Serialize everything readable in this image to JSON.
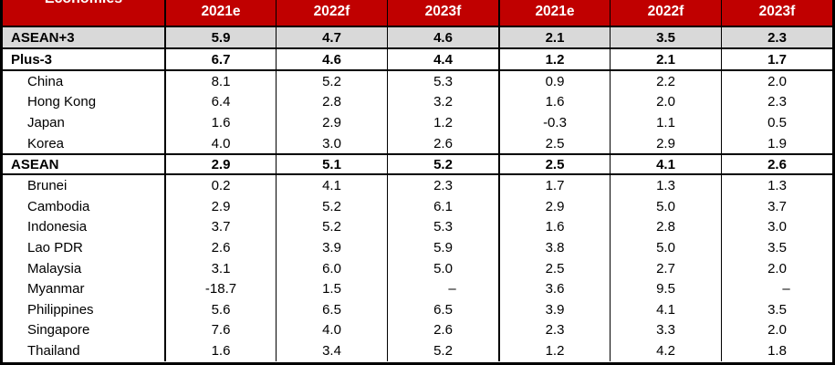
{
  "colors": {
    "header_bg": "#C00000",
    "header_text": "#FFFFFF",
    "highlight_row_bg": "#D9D9D9",
    "border": "#000000",
    "body_text": "#000000"
  },
  "table": {
    "economies_label": "Economies",
    "columns": [
      "2021e",
      "2022f",
      "2023f",
      "2021e",
      "2022f",
      "2023f"
    ],
    "rows": [
      {
        "label": "ASEAN+3",
        "type": "section-gray",
        "values": [
          "5.9",
          "4.7",
          "4.6",
          "2.1",
          "3.5",
          "2.3"
        ]
      },
      {
        "label": "Plus-3",
        "type": "section",
        "values": [
          "6.7",
          "4.6",
          "4.4",
          "1.2",
          "2.1",
          "1.7"
        ]
      },
      {
        "label": "China",
        "type": "country",
        "values": [
          "8.1",
          "5.2",
          "5.3",
          "0.9",
          "2.2",
          "2.0"
        ]
      },
      {
        "label": "Hong Kong",
        "type": "country",
        "values": [
          "6.4",
          "2.8",
          "3.2",
          "1.6",
          "2.0",
          "2.3"
        ]
      },
      {
        "label": "Japan",
        "type": "country",
        "values": [
          "1.6",
          "2.9",
          "1.2",
          "-0.3",
          "1.1",
          "0.5"
        ]
      },
      {
        "label": "Korea",
        "type": "country",
        "values": [
          "4.0",
          "3.0",
          "2.6",
          "2.5",
          "2.9",
          "1.9"
        ]
      },
      {
        "label": "ASEAN",
        "type": "section",
        "values": [
          "2.9",
          "5.1",
          "5.2",
          "2.5",
          "4.1",
          "2.6"
        ]
      },
      {
        "label": "Brunei",
        "type": "country",
        "values": [
          "0.2",
          "4.1",
          "2.3",
          "1.7",
          "1.3",
          "1.3"
        ]
      },
      {
        "label": "Cambodia",
        "type": "country",
        "values": [
          "2.9",
          "5.2",
          "6.1",
          "2.9",
          "5.0",
          "3.7"
        ]
      },
      {
        "label": "Indonesia",
        "type": "country",
        "values": [
          "3.7",
          "5.2",
          "5.3",
          "1.6",
          "2.8",
          "3.0"
        ]
      },
      {
        "label": "Lao PDR",
        "type": "country",
        "values": [
          "2.6",
          "3.9",
          "5.9",
          "3.8",
          "5.0",
          "3.5"
        ]
      },
      {
        "label": "Malaysia",
        "type": "country",
        "values": [
          "3.1",
          "6.0",
          "5.0",
          "2.5",
          "2.7",
          "2.0"
        ]
      },
      {
        "label": "Myanmar",
        "type": "country",
        "values": [
          "-18.7",
          "1.5",
          "–",
          "3.6",
          "9.5",
          "–"
        ]
      },
      {
        "label": "Philippines",
        "type": "country",
        "values": [
          "5.6",
          "6.5",
          "6.5",
          "3.9",
          "4.1",
          "3.5"
        ]
      },
      {
        "label": "Singapore",
        "type": "country",
        "values": [
          "7.6",
          "4.0",
          "2.6",
          "2.3",
          "3.3",
          "2.0"
        ]
      },
      {
        "label": "Thailand",
        "type": "country",
        "values": [
          "1.6",
          "3.4",
          "5.2",
          "1.2",
          "4.2",
          "1.8"
        ]
      }
    ]
  }
}
